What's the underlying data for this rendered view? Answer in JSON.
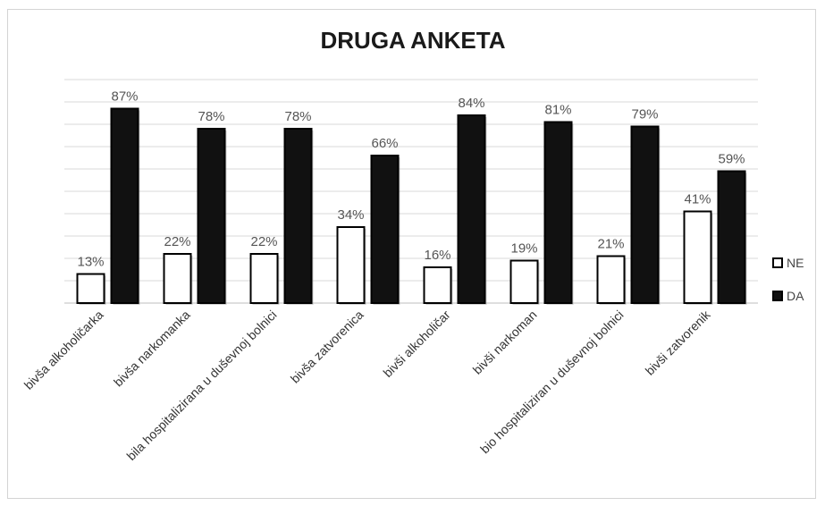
{
  "chart_data": {
    "type": "bar",
    "title": "DRUGA ANKETA",
    "xlabel": "",
    "ylabel": "",
    "ylim": [
      0,
      100
    ],
    "grid": true,
    "legend_position": "right",
    "value_suffix": "%",
    "categories": [
      "bivša alkoholičarka",
      "bivša narkomanka",
      "bila hospitalizirana u duševnoj bolnici",
      "bivša zatvorenica",
      "bivši alkoholičar",
      "bivši narkoman",
      "bio hospitaliziran u duševnoj bolnici",
      "bivši zatvorenik"
    ],
    "series": [
      {
        "name": "NE",
        "color": "#ffffff",
        "values": [
          13,
          22,
          22,
          34,
          16,
          19,
          21,
          41
        ]
      },
      {
        "name": "DA",
        "color": "#111111",
        "values": [
          87,
          78,
          78,
          66,
          84,
          81,
          79,
          59
        ]
      }
    ]
  }
}
